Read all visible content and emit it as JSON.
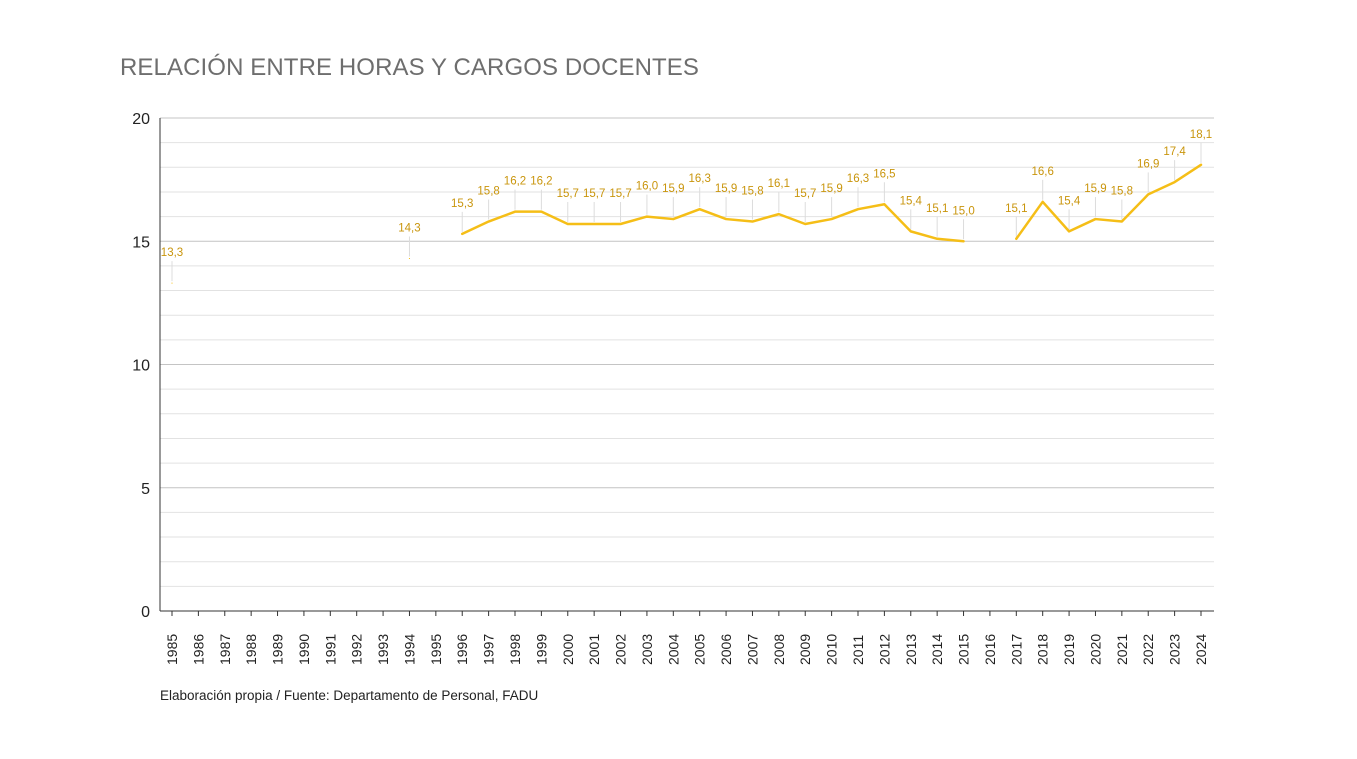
{
  "chart_data": {
    "type": "line",
    "title": "RELACIÓN ENTRE HORAS Y CARGOS DOCENTES",
    "source": "Elaboración propia / Fuente: Departamento de Personal, FADU",
    "xlabel": "",
    "ylabel": "",
    "ylim": [
      0,
      20
    ],
    "yticks": [
      "0",
      "5",
      "10",
      "15",
      "20"
    ],
    "grid": true,
    "line_color": "#F5BE17",
    "label_color": "#C9950C",
    "categories": [
      "1985",
      "1986",
      "1987",
      "1988",
      "1989",
      "1990",
      "1991",
      "1992",
      "1993",
      "1994",
      "1995",
      "1996",
      "1997",
      "1998",
      "1999",
      "2000",
      "2001",
      "2002",
      "2003",
      "2004",
      "2005",
      "2006",
      "2007",
      "2008",
      "2009",
      "2010",
      "2011",
      "2012",
      "2013",
      "2014",
      "2015",
      "2016",
      "2017",
      "2018",
      "2019",
      "2020",
      "2021",
      "2022",
      "2023",
      "2024"
    ],
    "series": [
      {
        "values": [
          13.3,
          null,
          null,
          null,
          null,
          null,
          null,
          null,
          null,
          14.3,
          null,
          15.3,
          15.8,
          16.2,
          16.2,
          15.7,
          15.7,
          15.7,
          16.0,
          15.9,
          16.3,
          15.9,
          15.8,
          16.1,
          15.7,
          15.9,
          16.3,
          16.5,
          15.4,
          15.1,
          15.0,
          null,
          15.1,
          16.6,
          15.4,
          15.9,
          15.8,
          16.9,
          17.4,
          18.1
        ],
        "labels": [
          "13,3",
          "",
          "",
          "",
          "",
          "",
          "",
          "",
          "",
          "14,3",
          "",
          "15,3",
          "15,8",
          "16,2",
          "16,2",
          "15,7",
          "15,7",
          "15,7",
          "16,0",
          "15,9",
          "16,3",
          "15,9",
          "15,8",
          "16,1",
          "15,7",
          "15,9",
          "16,3",
          "16,5",
          "15,4",
          "15,1",
          "15,0",
          "",
          "15,1",
          "16,6",
          "15,4",
          "15,9",
          "15,8",
          "16,9",
          "17,4",
          "18,1"
        ]
      }
    ]
  }
}
